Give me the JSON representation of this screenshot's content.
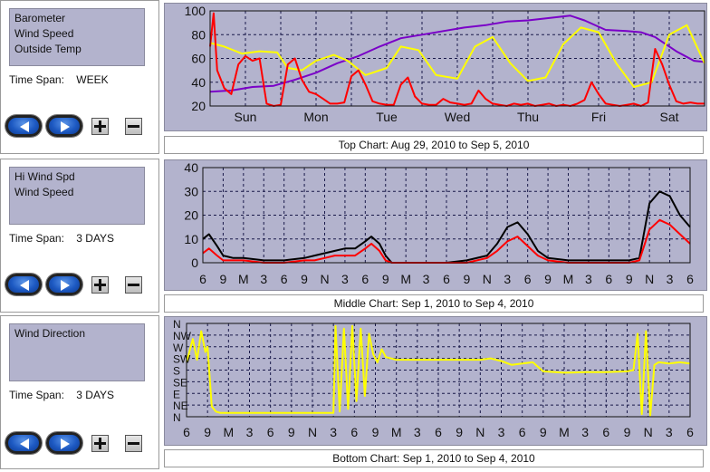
{
  "colors": {
    "panel_bg": "#b3b3cd",
    "barometer": "#7a00c8",
    "wind_speed": "#ff0000",
    "outside_temp": "#ffff00",
    "hi_wind_spd": "#000000",
    "wind_direction": "#ffff00"
  },
  "panels": [
    {
      "series": [
        "Barometer",
        "Wind Speed",
        "Outside Temp"
      ],
      "time_span_label": "Time Span:",
      "time_span_value": "WEEK",
      "caption": "Top Chart:  Aug 29, 2010  to  Sep 5, 2010"
    },
    {
      "series": [
        "Hi Wind Spd",
        "Wind Speed"
      ],
      "time_span_label": "Time Span:",
      "time_span_value": "3 DAYS",
      "caption": "Middle Chart:  Sep 1, 2010  to  Sep 4, 2010"
    },
    {
      "series": [
        "Wind Direction"
      ],
      "time_span_label": "Time Span:",
      "time_span_value": "3 DAYS",
      "caption": "Bottom Chart:  Sep 1, 2010  to  Sep 4, 2010"
    }
  ],
  "icons": {
    "back": "back-arrow-icon",
    "forward": "forward-arrow-icon",
    "zoom_in": "plus-icon",
    "zoom_out": "minus-icon"
  },
  "chart_data": [
    {
      "type": "line",
      "title": "Top Chart:  Aug 29, 2010  to  Sep 5, 2010",
      "x_tick_labels": [
        "Sun",
        "Mon",
        "Tue",
        "Wed",
        "Thu",
        "Fri",
        "Sat"
      ],
      "xlim": [
        0,
        7
      ],
      "y_ticks": [
        20,
        40,
        60,
        80,
        100
      ],
      "ylim": [
        20,
        100
      ],
      "grid": true,
      "series": [
        {
          "name": "Barometer",
          "color": "#7a00c8",
          "x": [
            0,
            0.3,
            0.6,
            0.9,
            1.2,
            1.5,
            1.8,
            2.1,
            2.4,
            2.7,
            3.0,
            3.3,
            3.6,
            3.9,
            4.2,
            4.5,
            4.8,
            5.1,
            5.3,
            5.6,
            5.9,
            6.1,
            6.3,
            6.6,
            6.85,
            7.0
          ],
          "y": [
            32,
            33,
            36,
            37,
            42,
            48,
            56,
            62,
            70,
            77,
            80,
            83,
            86,
            88,
            91,
            92,
            94,
            96,
            92,
            84,
            83,
            82,
            78,
            66,
            58,
            57
          ]
        },
        {
          "name": "Outside Temp",
          "color": "#ffff00",
          "x": [
            0,
            0.2,
            0.45,
            0.7,
            0.95,
            1.1,
            1.3,
            1.5,
            1.75,
            1.95,
            2.2,
            2.5,
            2.7,
            2.95,
            3.2,
            3.5,
            3.75,
            4.0,
            4.25,
            4.5,
            4.75,
            5.0,
            5.25,
            5.5,
            5.75,
            6.0,
            6.25,
            6.5,
            6.75,
            7.0
          ],
          "y": [
            73,
            70,
            64,
            66,
            65,
            52,
            50,
            58,
            63,
            58,
            46,
            52,
            70,
            67,
            46,
            43,
            70,
            78,
            56,
            41,
            44,
            72,
            86,
            82,
            56,
            36,
            40,
            80,
            88,
            56
          ]
        },
        {
          "name": "Wind Speed",
          "color": "#ff0000",
          "x": [
            0,
            0.05,
            0.1,
            0.2,
            0.3,
            0.4,
            0.5,
            0.6,
            0.7,
            0.8,
            0.9,
            1.0,
            1.1,
            1.2,
            1.3,
            1.4,
            1.5,
            1.6,
            1.7,
            1.8,
            1.9,
            2.0,
            2.1,
            2.2,
            2.3,
            2.4,
            2.5,
            2.6,
            2.7,
            2.8,
            2.9,
            3.0,
            3.1,
            3.2,
            3.3,
            3.4,
            3.5,
            3.6,
            3.7,
            3.8,
            3.9,
            4.0,
            4.1,
            4.2,
            4.3,
            4.4,
            4.5,
            4.6,
            4.7,
            4.8,
            4.9,
            5.0,
            5.1,
            5.2,
            5.3,
            5.4,
            5.5,
            5.6,
            5.7,
            5.8,
            5.9,
            6.0,
            6.1,
            6.2,
            6.3,
            6.4,
            6.5,
            6.6,
            6.7,
            6.8,
            6.9,
            7.0
          ],
          "y": [
            70,
            98,
            50,
            35,
            30,
            55,
            62,
            58,
            60,
            22,
            20,
            21,
            55,
            60,
            42,
            32,
            30,
            26,
            22,
            22,
            23,
            45,
            50,
            38,
            24,
            22,
            21,
            21,
            38,
            44,
            28,
            22,
            21,
            21,
            26,
            23,
            22,
            21,
            22,
            33,
            26,
            22,
            21,
            20,
            22,
            21,
            22,
            20,
            21,
            22,
            20,
            21,
            20,
            22,
            25,
            40,
            30,
            22,
            21,
            20,
            21,
            22,
            20,
            23,
            68,
            55,
            38,
            24,
            22,
            23,
            22,
            22
          ]
        }
      ]
    },
    {
      "type": "line",
      "title": "Middle Chart:  Sep 1, 2010  to  Sep 4, 2010",
      "x_tick_labels": [
        "6",
        "9",
        "M",
        "3",
        "6",
        "9",
        "N",
        "3",
        "6",
        "9",
        "M",
        "3",
        "6",
        "9",
        "N",
        "3",
        "6",
        "9",
        "M",
        "3",
        "6",
        "9",
        "N",
        "3",
        "6"
      ],
      "xlim": [
        0,
        24
      ],
      "y_ticks": [
        0,
        10,
        20,
        30,
        40
      ],
      "ylim": [
        0,
        40
      ],
      "grid": true,
      "series": [
        {
          "name": "Hi Wind Spd",
          "color": "#000000",
          "x": [
            0,
            0.3,
            0.7,
            1.0,
            1.5,
            2.0,
            3.0,
            4.0,
            5.0,
            5.5,
            6.0,
            6.5,
            7.0,
            7.5,
            8.0,
            8.3,
            8.7,
            9.0,
            9.3,
            10.0,
            11.0,
            12.0,
            13.0,
            14.0,
            14.5,
            15.0,
            15.5,
            16.0,
            16.5,
            17.0,
            18.0,
            19.0,
            20.0,
            21.0,
            21.5,
            22.0,
            22.5,
            23.0,
            23.5,
            24.0
          ],
          "y": [
            10,
            12,
            7,
            3,
            2,
            2,
            1,
            1,
            2,
            3,
            4,
            5,
            6,
            6,
            9,
            11,
            8,
            3,
            0,
            0,
            0,
            0,
            1,
            3,
            8,
            15,
            17,
            12,
            5,
            2,
            1,
            1,
            1,
            1,
            2,
            25,
            30,
            28,
            20,
            15
          ]
        },
        {
          "name": "Wind Speed",
          "color": "#ff0000",
          "x": [
            0,
            0.3,
            0.7,
            1.0,
            1.5,
            2.0,
            3.0,
            4.0,
            5.0,
            5.5,
            6.0,
            6.5,
            7.0,
            7.5,
            8.0,
            8.3,
            8.7,
            9.0,
            9.3,
            10.0,
            11.0,
            12.0,
            13.0,
            14.0,
            14.5,
            15.0,
            15.5,
            16.0,
            16.5,
            17.0,
            18.0,
            19.0,
            20.0,
            21.0,
            21.5,
            22.0,
            22.5,
            23.0,
            23.5,
            24.0
          ],
          "y": [
            4,
            6,
            3,
            1,
            1,
            1,
            0,
            0,
            1,
            1,
            2,
            3,
            3,
            3,
            6,
            8,
            5,
            1,
            0,
            0,
            0,
            0,
            0,
            2,
            5,
            9,
            11,
            7,
            3,
            1,
            0,
            0,
            0,
            0,
            1,
            14,
            18,
            16,
            12,
            8
          ]
        }
      ]
    },
    {
      "type": "line",
      "title": "Bottom Chart:  Sep 1, 2010  to  Sep 4, 2010",
      "x_tick_labels": [
        "6",
        "9",
        "M",
        "3",
        "6",
        "9",
        "N",
        "3",
        "6",
        "9",
        "M",
        "3",
        "6",
        "9",
        "N",
        "3",
        "6",
        "9",
        "M",
        "3",
        "6",
        "9",
        "N",
        "3",
        "6"
      ],
      "xlim": [
        0,
        24
      ],
      "y_tick_labels": [
        "N",
        "NW",
        "W",
        "SW",
        "S",
        "SE",
        "E",
        "NE",
        "N"
      ],
      "ylim": [
        0,
        360
      ],
      "grid": true,
      "series": [
        {
          "name": "Wind Direction",
          "color": "#ffff00",
          "x": [
            0,
            0.3,
            0.5,
            0.7,
            0.9,
            1.0,
            1.2,
            1.4,
            1.6,
            2.0,
            3.0,
            4.0,
            5.0,
            6.0,
            6.5,
            7.0,
            7.1,
            7.3,
            7.5,
            7.7,
            7.9,
            8.1,
            8.3,
            8.5,
            8.7,
            8.9,
            9.1,
            9.3,
            9.5,
            10.0,
            11.0,
            12.0,
            13.0,
            14.0,
            14.5,
            15.0,
            15.5,
            16.0,
            16.5,
            17.0,
            18.0,
            19.0,
            20.0,
            21.0,
            21.3,
            21.5,
            21.7,
            21.9,
            22.1,
            22.3,
            22.5,
            23.0,
            23.5,
            24.0
          ],
          "y": [
            210,
            300,
            220,
            330,
            250,
            270,
            40,
            20,
            15,
            15,
            15,
            15,
            15,
            15,
            15,
            15,
            350,
            20,
            340,
            30,
            350,
            60,
            340,
            80,
            320,
            240,
            210,
            260,
            230,
            220,
            220,
            220,
            220,
            220,
            225,
            215,
            200,
            205,
            210,
            175,
            170,
            172,
            172,
            175,
            180,
            320,
            10,
            330,
            5,
            200,
            210,
            205,
            210,
            205
          ]
        }
      ]
    }
  ]
}
